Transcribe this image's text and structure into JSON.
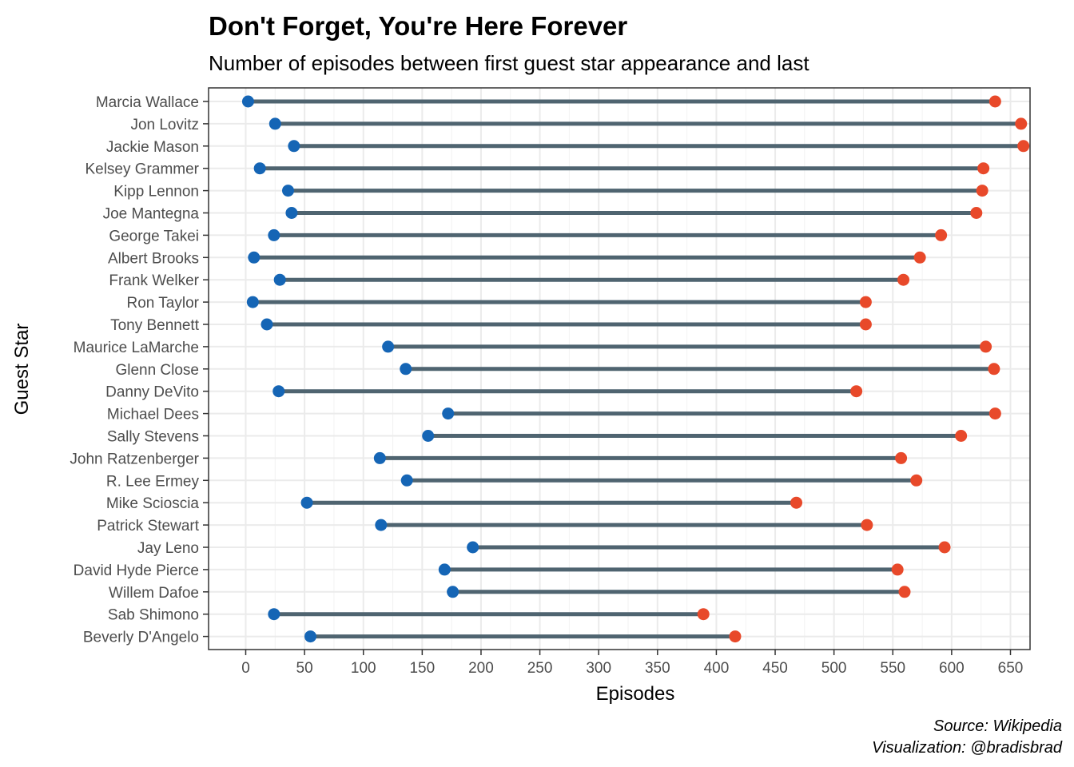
{
  "chart_data": {
    "type": "dumbbell",
    "title": "Don't Forget, You're Here Forever",
    "subtitle": "Number of episodes between first guest star appearance and last",
    "xlabel": "Episodes",
    "ylabel": "Guest Star",
    "xlim": [
      -12,
      668
    ],
    "x_ticks": [
      0,
      50,
      100,
      150,
      200,
      250,
      300,
      350,
      400,
      450,
      500,
      550,
      600,
      650
    ],
    "grid": true,
    "legend": "none",
    "colors": {
      "first": "#1565b5",
      "last": "#e8492a",
      "segment": "#4f6470",
      "panel_border": "#333333"
    },
    "rows": [
      {
        "name": "Marcia Wallace",
        "first": 2,
        "last": 637
      },
      {
        "name": "Jon Lovitz",
        "first": 25,
        "last": 659
      },
      {
        "name": "Jackie Mason",
        "first": 41,
        "last": 661
      },
      {
        "name": "Kelsey Grammer",
        "first": 12,
        "last": 627
      },
      {
        "name": "Kipp Lennon",
        "first": 36,
        "last": 626
      },
      {
        "name": "Joe Mantegna",
        "first": 39,
        "last": 621
      },
      {
        "name": "George Takei",
        "first": 24,
        "last": 591
      },
      {
        "name": "Albert Brooks",
        "first": 7,
        "last": 573
      },
      {
        "name": "Frank Welker",
        "first": 29,
        "last": 559
      },
      {
        "name": "Ron Taylor",
        "first": 6,
        "last": 527
      },
      {
        "name": "Tony Bennett",
        "first": 18,
        "last": 527
      },
      {
        "name": "Maurice LaMarche",
        "first": 121,
        "last": 629
      },
      {
        "name": "Glenn Close",
        "first": 136,
        "last": 636
      },
      {
        "name": "Danny DeVito",
        "first": 28,
        "last": 519
      },
      {
        "name": "Michael Dees",
        "first": 172,
        "last": 637
      },
      {
        "name": "Sally Stevens",
        "first": 155,
        "last": 608
      },
      {
        "name": "John Ratzenberger",
        "first": 114,
        "last": 557
      },
      {
        "name": "R. Lee Ermey",
        "first": 137,
        "last": 570
      },
      {
        "name": "Mike Scioscia",
        "first": 52,
        "last": 468
      },
      {
        "name": "Patrick Stewart",
        "first": 115,
        "last": 528
      },
      {
        "name": "Jay Leno",
        "first": 193,
        "last": 594
      },
      {
        "name": "David Hyde Pierce",
        "first": 169,
        "last": 554
      },
      {
        "name": "Willem Dafoe",
        "first": 176,
        "last": 560
      },
      {
        "name": "Sab Shimono",
        "first": 24,
        "last": 389
      },
      {
        "name": "Beverly D'Angelo",
        "first": 55,
        "last": 416
      }
    ]
  },
  "caption": {
    "source": "Source: Wikipedia",
    "credit": "Visualization: @bradisbrad"
  }
}
